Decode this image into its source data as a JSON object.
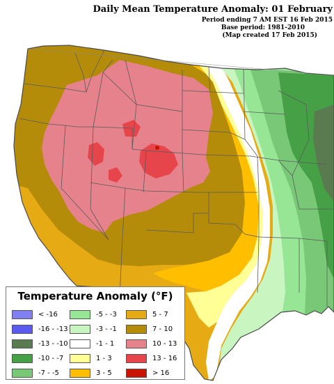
{
  "header": {
    "title": "Daily Mean Temperature Anomaly: 01 February",
    "period": "Period ending 7 AM EST 16 Feb 2015",
    "base": "Base period: 1981-2010",
    "created": "(Map created 17 Feb 2015)"
  },
  "colors": {
    "background": "#ffffff",
    "state_borders": "#5a5a5a",
    "legend_border": "#777777"
  },
  "legend": {
    "title": "Temperature Anomaly (°F)",
    "items": [
      {
        "label": "< -16",
        "color": "#8080f0"
      },
      {
        "label": "-16 - -13",
        "color": "#5a5af0"
      },
      {
        "label": "-13 - -10",
        "color": "#5a7a50"
      },
      {
        "label": "-10 - -7",
        "color": "#46a046"
      },
      {
        "label": "-7 - -5",
        "color": "#78c878"
      },
      {
        "label": "-5 - -3",
        "color": "#96e696"
      },
      {
        "label": "-3 - -1",
        "color": "#c8f5c0"
      },
      {
        "label": "-1 - 1",
        "color": "#ffffff"
      },
      {
        "label": "1 - 3",
        "color": "#ffff96"
      },
      {
        "label": "3 - 5",
        "color": "#ffbe00"
      },
      {
        "label": "5 - 7",
        "color": "#e6aa14"
      },
      {
        "label": "7 - 10",
        "color": "#b48c0a"
      },
      {
        "label": "10 - 13",
        "color": "#e6828c"
      },
      {
        "label": "13 - 16",
        "color": "#e6464b"
      },
      {
        "label": "> 16",
        "color": "#c81400"
      }
    ]
  }
}
